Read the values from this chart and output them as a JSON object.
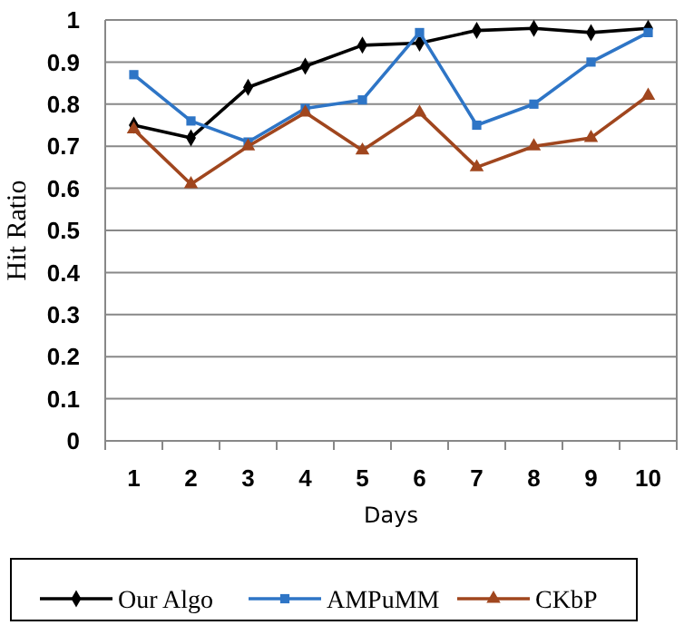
{
  "chart_data": {
    "type": "line",
    "xlabel": "Days",
    "ylabel": "Hit Ratio",
    "categories": [
      "1",
      "2",
      "3",
      "4",
      "5",
      "6",
      "7",
      "8",
      "9",
      "10"
    ],
    "series": [
      {
        "name": "Our Algo",
        "color": "#000000",
        "marker": "diamond",
        "values": [
          0.75,
          0.72,
          0.84,
          0.89,
          0.94,
          0.945,
          0.975,
          0.98,
          0.97,
          0.98
        ]
      },
      {
        "name": "AMPuMM",
        "color": "#2e75c6",
        "marker": "square",
        "values": [
          0.87,
          0.76,
          0.71,
          0.79,
          0.81,
          0.97,
          0.75,
          0.8,
          0.9,
          0.97
        ]
      },
      {
        "name": "CKbP",
        "color": "#a0461e",
        "marker": "triangle",
        "values": [
          0.74,
          0.61,
          0.7,
          0.78,
          0.69,
          0.78,
          0.65,
          0.7,
          0.72,
          0.82
        ]
      }
    ],
    "ylim": [
      0,
      1
    ],
    "yticks": [
      0,
      0.1,
      0.2,
      0.3,
      0.4,
      0.5,
      0.6,
      0.7,
      0.8,
      0.9,
      1
    ],
    "grid": "y",
    "legend": "bottom"
  }
}
